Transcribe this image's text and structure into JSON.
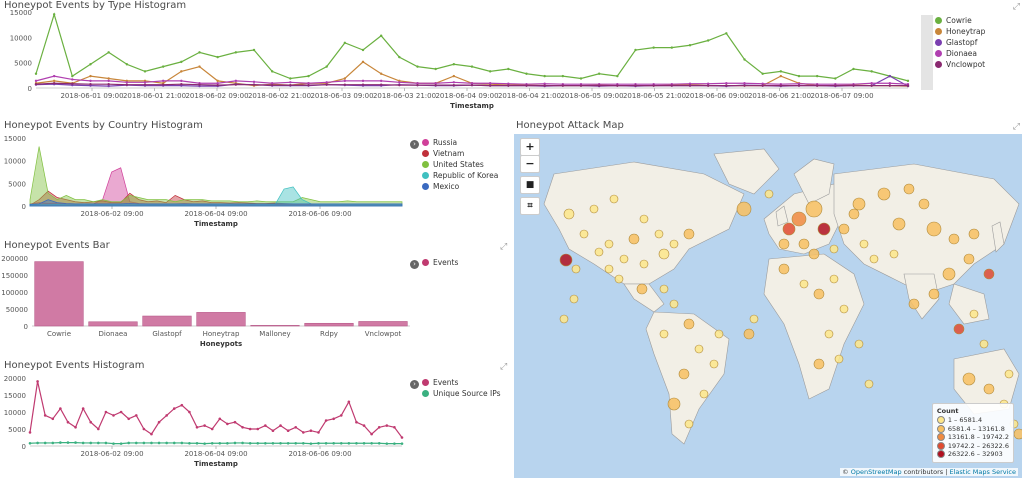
{
  "panels": {
    "type_hist": {
      "title": "Honeypot Events by Type Histogram",
      "xlabel": "Timestamp",
      "yticks": [
        "15000",
        "10000",
        "5000",
        "0"
      ],
      "xticks": [
        "2018-06-01 09:00",
        "2018-06-01 21:00",
        "2018-06-02 09:00",
        "2018-06-02 21:00",
        "2018-06-03 09:00",
        "2018-06-03 21:00",
        "2018-06-04 09:00",
        "2018-06-04 21:00",
        "2018-06-05 09:00",
        "2018-06-05 21:00",
        "2018-06-06 09:00",
        "2018-06-06 21:00",
        "2018-06-07 09:00"
      ],
      "legend": [
        {
          "label": "Cowrie",
          "color": "#6ab040"
        },
        {
          "label": "Honeytrap",
          "color": "#c8863a"
        },
        {
          "label": "Glastopf",
          "color": "#7a3fb0"
        },
        {
          "label": "Dionaea",
          "color": "#b03fb0"
        },
        {
          "label": "Vnclowpot",
          "color": "#8a2a70"
        }
      ]
    },
    "country_hist": {
      "title": "Honeypot Events by Country Histogram",
      "xlabel": "Timestamp",
      "yticks": [
        "15000",
        "10000",
        "5000",
        "0"
      ],
      "xticks": [
        "2018-06-02 09:00",
        "2018-06-04 09:00",
        "2018-06-06 09:00"
      ],
      "legend": [
        {
          "label": "Russia",
          "color": "#d0409a"
        },
        {
          "label": "Vietnam",
          "color": "#c0303a"
        },
        {
          "label": "United States",
          "color": "#80c040"
        },
        {
          "label": "Republic of Korea",
          "color": "#40c0c0"
        },
        {
          "label": "Mexico",
          "color": "#3a6ac0"
        }
      ]
    },
    "bar": {
      "title": "Honeypot Events Bar",
      "xlabel": "Honeypots",
      "yticks": [
        "200000",
        "150000",
        "100000",
        "50000",
        "0"
      ],
      "legend": [
        {
          "label": "Events",
          "color": "#c03a70"
        }
      ]
    },
    "events_hist": {
      "title": "Honeypot Events Histogram",
      "xlabel": "Timestamp",
      "yticks": [
        "20000",
        "15000",
        "10000",
        "5000",
        "0"
      ],
      "xticks": [
        "2018-06-02 09:00",
        "2018-06-04 09:00",
        "2018-06-06 09:00"
      ],
      "legend": [
        {
          "label": "Events",
          "color": "#c03a70"
        },
        {
          "label": "Unique Source IPs",
          "color": "#3ab080"
        }
      ]
    },
    "map": {
      "title": "Honeypot Attack Map",
      "zoom_in": "+",
      "zoom_out": "−",
      "legend_title": "Count",
      "legend": [
        {
          "label": "1 – 6581.4",
          "color": "#fde68a"
        },
        {
          "label": "6581.4 – 13161.8",
          "color": "#f8c060"
        },
        {
          "label": "13161.8 – 19742.2",
          "color": "#f08a40"
        },
        {
          "label": "19742.2 – 26322.6",
          "color": "#e04a30"
        },
        {
          "label": "26322.6 – 32903",
          "color": "#b01020"
        }
      ],
      "attribution_prefix": "© ",
      "attribution_osm": "OpenStreetMap",
      "attribution_mid": " contributors | ",
      "attribution_ems": "Elastic Maps Service"
    }
  },
  "chart_data": [
    {
      "type": "line",
      "title": "Honeypot Events by Type Histogram",
      "xlabel": "Timestamp",
      "ylim": [
        0,
        16000
      ],
      "series": [
        {
          "name": "Cowrie",
          "values": [
            3000,
            15500,
            2500,
            5000,
            7500,
            5000,
            3500,
            4500,
            5500,
            7500,
            6500,
            7500,
            8000,
            3500,
            2000,
            2500,
            4500,
            9500,
            8000,
            11000,
            6500,
            4500,
            4000,
            5000,
            4500,
            3500,
            4000,
            3000,
            2500,
            2500,
            2000,
            3000,
            2500,
            8000,
            8500,
            8500,
            9000,
            10000,
            11500,
            6000,
            3000,
            3500,
            2500,
            2500,
            2000,
            4000,
            3500,
            2500,
            1500
          ]
        },
        {
          "name": "Honeytrap",
          "values": [
            1000,
            1500,
            1000,
            2500,
            2000,
            1500,
            1500,
            1000,
            3500,
            4500,
            1500,
            1000,
            500,
            800,
            600,
            1000,
            1000,
            2000,
            5500,
            3000,
            1500,
            1000,
            1000,
            2500,
            1000,
            800,
            600,
            600,
            500,
            500,
            500,
            600,
            500,
            500,
            500,
            600,
            700,
            500,
            500,
            500,
            500,
            2500,
            1000,
            500,
            500,
            600,
            500,
            500,
            400
          ]
        },
        {
          "name": "Glastopf",
          "values": [
            700,
            800,
            600,
            500,
            400,
            600,
            500,
            500,
            500,
            400,
            400,
            800,
            700,
            500,
            500,
            500,
            700,
            600,
            500,
            500,
            700,
            600,
            500,
            500,
            600,
            500,
            500,
            500,
            400,
            500,
            500,
            400,
            500,
            400,
            500,
            500,
            500,
            500,
            400,
            600,
            500,
            400,
            500,
            500,
            400,
            500,
            500,
            2500,
            400
          ]
        },
        {
          "name": "Dionaea",
          "values": [
            1500,
            2500,
            1800,
            1500,
            1500,
            1200,
            1200,
            1500,
            1500,
            1000,
            1000,
            1500,
            1300,
            1000,
            1200,
            1000,
            1200,
            1500,
            1500,
            1500,
            1200,
            1000,
            1000,
            1200,
            1000,
            1000,
            900,
            800,
            900,
            800,
            800,
            800,
            800,
            800,
            800,
            800,
            900,
            900,
            1000,
            1000,
            900,
            800,
            900,
            800,
            800,
            800,
            1000,
            1000,
            800
          ]
        },
        {
          "name": "Vnclowpot",
          "values": [
            800,
            1000,
            900,
            800,
            800,
            700,
            700,
            700,
            800,
            700,
            600,
            700,
            700,
            600,
            600,
            600,
            700,
            700,
            700,
            700,
            600,
            600,
            600,
            600,
            600,
            500,
            500,
            500,
            500,
            500,
            500,
            500,
            500,
            500,
            500,
            500,
            500,
            500,
            500,
            500,
            500,
            500,
            500,
            500,
            500,
            500,
            500,
            500,
            500
          ]
        }
      ]
    },
    {
      "type": "area",
      "title": "Honeypot Events by Country Histogram",
      "xlabel": "Timestamp",
      "ylim": [
        0,
        16000
      ],
      "series": [
        {
          "name": "Russia",
          "values": [
            500,
            800,
            600,
            700,
            500,
            400,
            300,
            500,
            1500,
            8000,
            9000,
            1000,
            600,
            500,
            400,
            400,
            500,
            600,
            500,
            400,
            400,
            300,
            300,
            400,
            300,
            300,
            300,
            300,
            300,
            300,
            300,
            300,
            300,
            300,
            300,
            300,
            300,
            300,
            300,
            300,
            300,
            300
          ]
        },
        {
          "name": "Vietnam",
          "values": [
            200,
            1500,
            3500,
            2000,
            1500,
            1000,
            800,
            1000,
            1200,
            800,
            800,
            3000,
            1500,
            1000,
            1200,
            800,
            2500,
            1500,
            1000,
            1200,
            800,
            800,
            700,
            800,
            700,
            600,
            600,
            700,
            600,
            500,
            500,
            500,
            500,
            500,
            500,
            500,
            500,
            500,
            500,
            500,
            500,
            500
          ]
        },
        {
          "name": "United States",
          "values": [
            1500,
            14000,
            3000,
            1500,
            2500,
            1500,
            1500,
            1000,
            1500,
            1000,
            1000,
            2500,
            2000,
            1500,
            1500,
            1500,
            1000,
            1500,
            1500,
            1500,
            1200,
            1200,
            1200,
            1000,
            1000,
            1200,
            1000,
            1000,
            1000,
            1000,
            2000,
            1500,
            1000,
            1000,
            1000,
            1200,
            1000,
            1000,
            1000,
            1000,
            1000,
            1000
          ]
        },
        {
          "name": "Republic of Korea",
          "values": [
            300,
            300,
            300,
            400,
            300,
            300,
            300,
            300,
            300,
            300,
            300,
            300,
            300,
            300,
            300,
            300,
            300,
            300,
            300,
            300,
            300,
            300,
            300,
            300,
            300,
            300,
            300,
            300,
            4000,
            4500,
            1500,
            500,
            300,
            300,
            300,
            300,
            300,
            300,
            300,
            300,
            300,
            300
          ]
        },
        {
          "name": "Mexico",
          "values": [
            400,
            500,
            1500,
            800,
            600,
            500,
            500,
            500,
            500,
            500,
            500,
            600,
            500,
            500,
            500,
            500,
            500,
            500,
            500,
            500,
            500,
            500,
            500,
            500,
            500,
            500,
            500,
            500,
            500,
            500,
            500,
            500,
            500,
            500,
            500,
            500,
            500,
            500,
            500,
            500,
            500,
            500
          ]
        }
      ]
    },
    {
      "type": "bar",
      "title": "Honeypot Events Bar",
      "xlabel": "Honeypots",
      "categories": [
        "Cowrie",
        "Dionaea",
        "Glastopf",
        "Honeytrap",
        "Malloney",
        "Rdpy",
        "Vnclowpot"
      ],
      "ylim": [
        0,
        225000
      ],
      "series": [
        {
          "name": "Events",
          "values": [
            213000,
            14000,
            33000,
            45000,
            2000,
            9000,
            15000
          ]
        }
      ]
    },
    {
      "type": "line",
      "title": "Honeypot Events Histogram",
      "xlabel": "Timestamp",
      "ylim": [
        0,
        20000
      ],
      "series": [
        {
          "name": "Events",
          "values": [
            4000,
            19000,
            9000,
            8000,
            11000,
            7000,
            5500,
            11000,
            7000,
            5000,
            10000,
            9000,
            10000,
            8000,
            9000,
            5000,
            3500,
            7000,
            9000,
            11000,
            12000,
            10000,
            5500,
            6000,
            5000,
            8000,
            6500,
            7000,
            5500,
            5000,
            5000,
            6000,
            4500,
            6000,
            4500,
            5500,
            4000,
            4500,
            4000,
            7500,
            8000,
            9000,
            13000,
            7000,
            6000,
            3500,
            5500,
            6000,
            5500,
            2500
          ]
        },
        {
          "name": "Unique Source IPs",
          "values": [
            800,
            900,
            900,
            900,
            1000,
            1000,
            1000,
            900,
            900,
            900,
            900,
            700,
            700,
            900,
            900,
            900,
            900,
            900,
            900,
            900,
            900,
            800,
            800,
            700,
            800,
            800,
            800,
            900,
            900,
            800,
            800,
            800,
            800,
            800,
            800,
            800,
            800,
            700,
            800,
            800,
            800,
            800,
            800,
            800,
            800,
            800,
            800,
            700,
            700,
            700
          ]
        }
      ]
    }
  ]
}
